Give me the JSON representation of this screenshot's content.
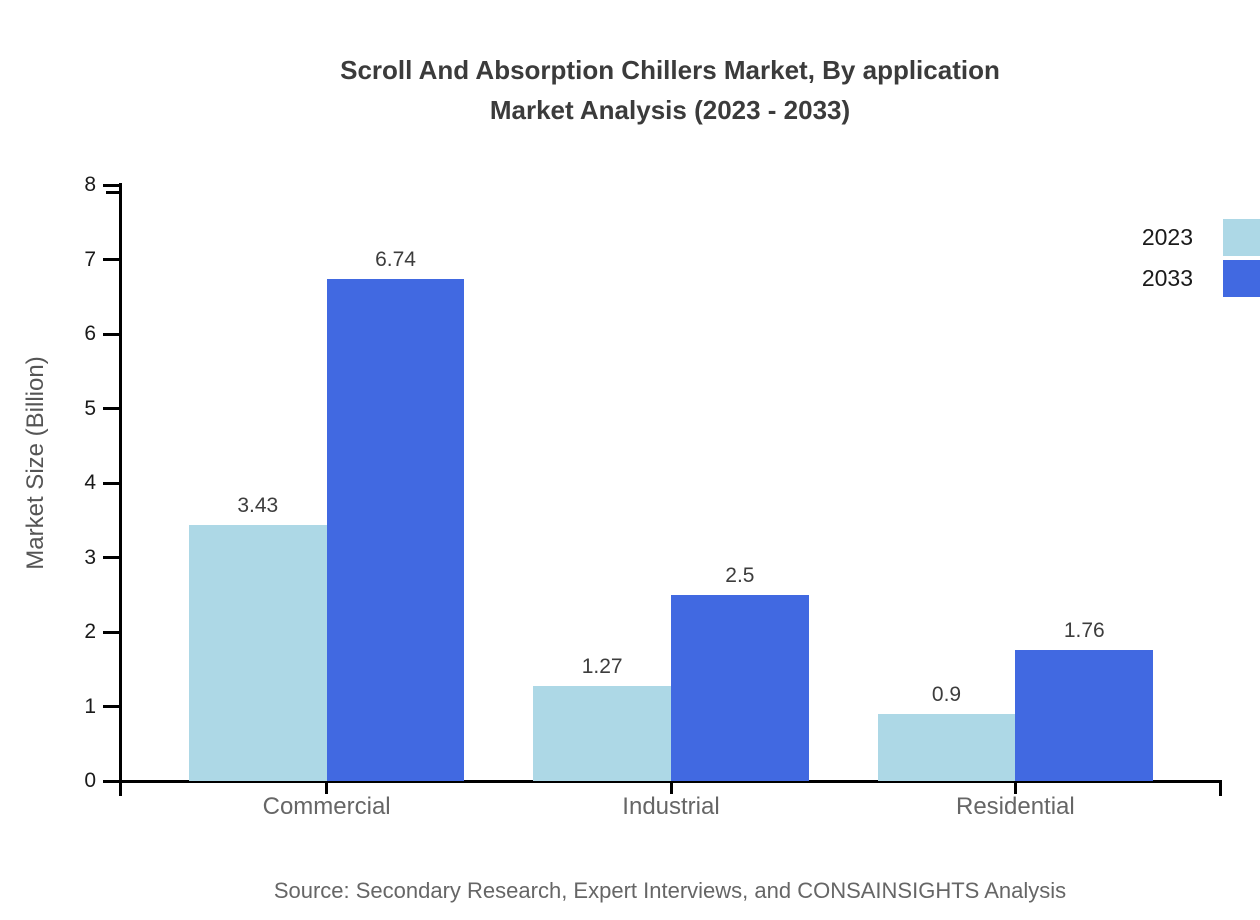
{
  "source": "Source: Secondary Research, Expert Interviews, and CONSAINSIGHTS Analysis",
  "colors": {
    "series_2023": "#ADD8E6",
    "series_2033": "#4169E1",
    "axis": "#000000",
    "title_text": "#3b3b3b",
    "category_text": "#666666",
    "value_label_text": "#3d3d3d",
    "source_text": "#666666",
    "background": "#ffffff"
  },
  "chart_data": {
    "type": "bar",
    "title": "Scroll And Absorption Chillers Market, By application",
    "subtitle": "Market Analysis (2023 - 2033)",
    "ylabel": "Market Size (Billion)",
    "xlabel": "",
    "categories": [
      "Commercial",
      "Industrial",
      "Residential"
    ],
    "series": [
      {
        "name": "2023",
        "color": "#ADD8E6",
        "values": [
          3.43,
          1.27,
          0.9
        ]
      },
      {
        "name": "2033",
        "color": "#4169E1",
        "values": [
          6.74,
          2.5,
          1.76
        ]
      }
    ],
    "ylim": [
      0,
      8
    ],
    "yticks": [
      0,
      1,
      2,
      3,
      4,
      5,
      6,
      7,
      8
    ],
    "grid": false,
    "legend_position": "top-right",
    "value_labels_shown": true
  }
}
